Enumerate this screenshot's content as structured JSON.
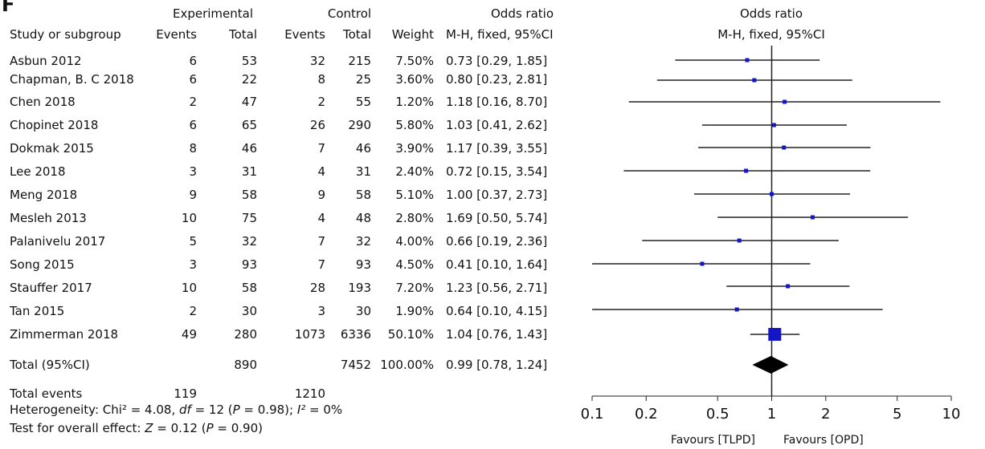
{
  "panel_letter": "F",
  "headers": {
    "experimental": "Experimental",
    "control": "Control",
    "odds_ratio": "Odds ratio",
    "plot_title": "Odds ratio",
    "study": "Study or subgroup",
    "events": "Events",
    "total": "Total",
    "weight": "Weight",
    "method": "M-H, fixed, 95%CI",
    "plot_method": "M-H, fixed, 95%CI"
  },
  "studies": [
    {
      "name": "Asbun 2012",
      "e_events": "6",
      "e_total": "53",
      "c_events": "32",
      "c_total": "215",
      "weight": "7.50%",
      "ci_text": "0.73 [0.29, 1.85]"
    },
    {
      "name": "Chapman, B. C 2018",
      "e_events": "6",
      "e_total": "22",
      "c_events": "8",
      "c_total": "25",
      "weight": "3.60%",
      "ci_text": "0.80 [0.23, 2.81]"
    },
    {
      "name": "Chen 2018",
      "e_events": "2",
      "e_total": "47",
      "c_events": "2",
      "c_total": "55",
      "weight": "1.20%",
      "ci_text": "1.18 [0.16, 8.70]"
    },
    {
      "name": "Chopinet 2018",
      "e_events": "6",
      "e_total": "65",
      "c_events": "26",
      "c_total": "290",
      "weight": "5.80%",
      "ci_text": "1.03 [0.41, 2.62]"
    },
    {
      "name": "Dokmak 2015",
      "e_events": "8",
      "e_total": "46",
      "c_events": "7",
      "c_total": "46",
      "weight": "3.90%",
      "ci_text": "1.17 [0.39, 3.55]"
    },
    {
      "name": "Lee 2018",
      "e_events": "3",
      "e_total": "31",
      "c_events": "4",
      "c_total": "31",
      "weight": "2.40%",
      "ci_text": "0.72 [0.15, 3.54]"
    },
    {
      "name": "Meng 2018",
      "e_events": "9",
      "e_total": "58",
      "c_events": "9",
      "c_total": "58",
      "weight": "5.10%",
      "ci_text": "1.00 [0.37, 2.73]"
    },
    {
      "name": "Mesleh 2013",
      "e_events": "10",
      "e_total": "75",
      "c_events": "4",
      "c_total": "48",
      "weight": "2.80%",
      "ci_text": "1.69 [0.50, 5.74]"
    },
    {
      "name": "Palanivelu 2017",
      "e_events": "5",
      "e_total": "32",
      "c_events": "7",
      "c_total": "32",
      "weight": "4.00%",
      "ci_text": "0.66 [0.19, 2.36]"
    },
    {
      "name": "Song 2015",
      "e_events": "3",
      "e_total": "93",
      "c_events": "7",
      "c_total": "93",
      "weight": "4.50%",
      "ci_text": "0.41 [0.10, 1.64]"
    },
    {
      "name": "Stauffer 2017",
      "e_events": "10",
      "e_total": "58",
      "c_events": "28",
      "c_total": "193",
      "weight": "7.20%",
      "ci_text": "1.23 [0.56, 2.71]"
    },
    {
      "name": "Tan 2015",
      "e_events": "2",
      "e_total": "30",
      "c_events": "3",
      "c_total": "30",
      "weight": "1.90%",
      "ci_text": "0.64 [0.10, 4.15]"
    },
    {
      "name": "Zimmerman 2018",
      "e_events": "49",
      "e_total": "280",
      "c_events": "1073",
      "c_total": "6336",
      "weight": "50.10%",
      "ci_text": "1.04 [0.76, 1.43]"
    }
  ],
  "total_row": {
    "name": "Total (95%CI)",
    "e_total": "890",
    "c_total": "7452",
    "weight": "100.00%",
    "ci_text": "0.99 [0.78, 1.24]"
  },
  "total_events": {
    "label": "Total events",
    "e_events": "119",
    "c_events": "1210"
  },
  "heterogeneity": {
    "prefix": "Heterogeneity: Chi² = 4.08, ",
    "df_symbol": "df",
    "df_part": " = 12 (",
    "p_symbol": "P",
    "p_part": " = 0.98); ",
    "i2_symbol": "I²",
    "i2_part": " = 0%"
  },
  "overall_effect": {
    "prefix": "Test for overall effect: ",
    "z_symbol": "Z",
    "z_part": " = 0.12 (",
    "p_symbol": "P",
    "p_part": " = 0.90)"
  },
  "favours_left": "Favours [TLPD]",
  "favours_right": "Favours [OPD]",
  "colors": {
    "marker": "#1515c8",
    "diamond": "#000000",
    "line": "#222222"
  },
  "chart_data": {
    "type": "forest",
    "x_scale": "log",
    "xlim": [
      0.1,
      10
    ],
    "x_ticks": [
      0.1,
      0.2,
      0.5,
      1,
      2,
      5,
      10
    ],
    "x_tick_labels": [
      "0.1",
      "0.2",
      "0.5",
      "1",
      "2",
      "5",
      "10"
    ],
    "title": "Odds ratio",
    "subtitle": "M-H, fixed, 95%CI",
    "points": [
      {
        "study": "Asbun 2012",
        "or": 0.73,
        "lo": 0.29,
        "hi": 1.85,
        "weight": 7.5
      },
      {
        "study": "Chapman, B. C 2018",
        "or": 0.8,
        "lo": 0.23,
        "hi": 2.81,
        "weight": 3.6
      },
      {
        "study": "Chen 2018",
        "or": 1.18,
        "lo": 0.16,
        "hi": 8.7,
        "weight": 1.2
      },
      {
        "study": "Chopinet 2018",
        "or": 1.03,
        "lo": 0.41,
        "hi": 2.62,
        "weight": 5.8
      },
      {
        "study": "Dokmak 2015",
        "or": 1.17,
        "lo": 0.39,
        "hi": 3.55,
        "weight": 3.9
      },
      {
        "study": "Lee 2018",
        "or": 0.72,
        "lo": 0.15,
        "hi": 3.54,
        "weight": 2.4
      },
      {
        "study": "Meng 2018",
        "or": 1.0,
        "lo": 0.37,
        "hi": 2.73,
        "weight": 5.1
      },
      {
        "study": "Mesleh 2013",
        "or": 1.69,
        "lo": 0.5,
        "hi": 5.74,
        "weight": 2.8
      },
      {
        "study": "Palanivelu 2017",
        "or": 0.66,
        "lo": 0.19,
        "hi": 2.36,
        "weight": 4.0
      },
      {
        "study": "Song 2015",
        "or": 0.41,
        "lo": 0.1,
        "hi": 1.64,
        "weight": 4.5
      },
      {
        "study": "Stauffer 2017",
        "or": 1.23,
        "lo": 0.56,
        "hi": 2.71,
        "weight": 7.2
      },
      {
        "study": "Tan 2015",
        "or": 0.64,
        "lo": 0.1,
        "hi": 4.15,
        "weight": 1.9
      },
      {
        "study": "Zimmerman 2018",
        "or": 1.04,
        "lo": 0.76,
        "hi": 1.43,
        "weight": 50.1
      }
    ],
    "pooled": {
      "or": 0.99,
      "lo": 0.78,
      "hi": 1.24
    }
  }
}
